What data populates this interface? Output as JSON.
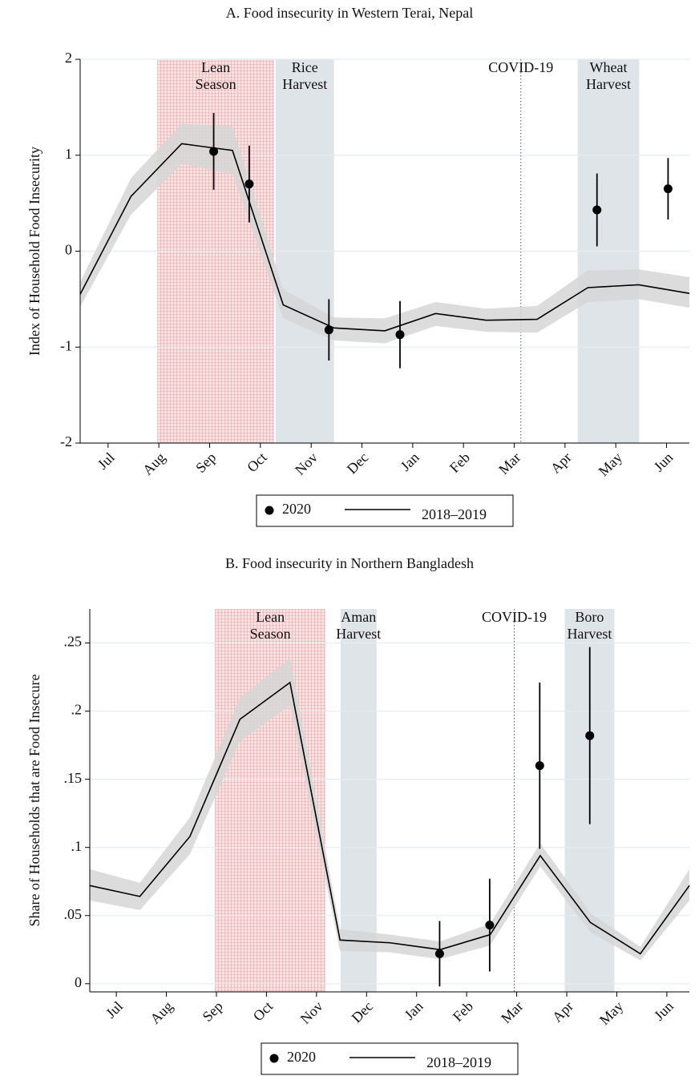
{
  "chart_data": [
    {
      "type": "line",
      "title": "A. Food insecurity in Western Terai, Nepal",
      "ylabel": "Index of Household Food Insecurity",
      "xlim": [
        -0.55,
        11.45
      ],
      "ylim": [
        -2,
        2
      ],
      "yticks": [
        -2,
        -1,
        0,
        1,
        2
      ],
      "grid": true,
      "legend": "bottom",
      "xticks": [
        {
          "value": 0,
          "label": "Jul"
        },
        {
          "value": 1,
          "label": "Aug"
        },
        {
          "value": 2,
          "label": "Sep"
        },
        {
          "value": 3,
          "label": "Oct"
        },
        {
          "value": 4,
          "label": "Nov"
        },
        {
          "value": 5,
          "label": "Dec"
        },
        {
          "value": 6,
          "label": "Jan"
        },
        {
          "value": 7,
          "label": "Feb"
        },
        {
          "value": 8,
          "label": "Mar"
        },
        {
          "value": 9,
          "label": "Apr"
        },
        {
          "value": 10,
          "label": "May"
        },
        {
          "value": 11,
          "label": "Jun"
        }
      ],
      "regions": [
        {
          "label": [
            "Lean",
            "Season"
          ],
          "x": [
            0.97,
            3.27
          ],
          "pattern": true,
          "color": "#f6e4e4"
        },
        {
          "label": [
            "Rice",
            "Harvest"
          ],
          "x": [
            3.3,
            4.45
          ],
          "color": "#dfe4e9"
        },
        {
          "label": [
            "Wheat",
            "Harvest"
          ],
          "x": [
            9.25,
            10.46
          ],
          "color": "#dfe4e9"
        }
      ],
      "vline": {
        "label": "COVID-19",
        "x": 8.13
      },
      "series": [
        {
          "name": "2020",
          "kind": "points",
          "color": "#000000",
          "x": [
            2.08,
            2.78,
            4.35,
            5.75,
            9.63,
            11.03
          ],
          "values": [
            1.04,
            0.7,
            -0.82,
            -0.87,
            0.43,
            0.65
          ],
          "errors": [
            0.4,
            0.4,
            0.32,
            0.35,
            0.38,
            0.32
          ]
        },
        {
          "name": "2018–2019",
          "kind": "line",
          "color": "#000000",
          "band_color": "#d6d6d6",
          "x": [
            -0.55,
            0.45,
            1.45,
            2.45,
            3.45,
            4.45,
            5.45,
            6.45,
            7.45,
            8.45,
            9.45,
            10.45,
            11.45
          ],
          "values": [
            -0.45,
            0.57,
            1.12,
            1.05,
            -0.56,
            -0.8,
            -0.83,
            -0.65,
            -0.72,
            -0.71,
            -0.38,
            -0.35,
            -0.44
          ],
          "upper": [
            -0.32,
            0.76,
            1.33,
            1.3,
            -0.4,
            -0.69,
            -0.7,
            -0.53,
            -0.6,
            -0.57,
            -0.2,
            -0.19,
            -0.27
          ],
          "lower": [
            -0.58,
            0.38,
            0.91,
            0.8,
            -0.7,
            -0.93,
            -0.96,
            -0.78,
            -0.84,
            -0.85,
            -0.53,
            -0.5,
            -0.59
          ]
        }
      ]
    },
    {
      "type": "line",
      "title": "B. Food insecurity in Northern Bangladesh",
      "ylabel": "Share of Households that are Food Insecure",
      "xlim": [
        -0.53,
        11.45
      ],
      "ylim": [
        -0.006,
        0.275
      ],
      "grid": true,
      "legend": "bottom",
      "yticks": [
        0,
        {
          "value": 0.05,
          "label": ".05"
        },
        {
          "value": 0.1,
          "label": ".1"
        },
        {
          "value": 0.15,
          "label": ".15"
        },
        {
          "value": 0.2,
          "label": ".2"
        },
        {
          "value": 0.25,
          "label": ".25"
        }
      ],
      "xticks": [
        {
          "value": 0,
          "label": "Jul"
        },
        {
          "value": 1,
          "label": "Aug"
        },
        {
          "value": 2,
          "label": "Sep"
        },
        {
          "value": 3,
          "label": "Oct"
        },
        {
          "value": 4,
          "label": "Nov"
        },
        {
          "value": 5,
          "label": "Dec"
        },
        {
          "value": 6,
          "label": "Jan"
        },
        {
          "value": 7,
          "label": "Feb"
        },
        {
          "value": 8,
          "label": "Mar"
        },
        {
          "value": 9,
          "label": "Apr"
        },
        {
          "value": 10,
          "label": "May"
        },
        {
          "value": 11,
          "label": "Jun"
        }
      ],
      "regions": [
        {
          "label": [
            "Lean",
            "Season"
          ],
          "x": [
            1.97,
            4.18
          ],
          "pattern": true,
          "color": "#f6e4e4"
        },
        {
          "label": [
            "Aman",
            "Harvest"
          ],
          "x": [
            4.48,
            5.2
          ],
          "color": "#dfe4e9"
        },
        {
          "label": [
            "Boro",
            "Harvest"
          ],
          "x": [
            8.96,
            9.95
          ],
          "color": "#dfe4e9"
        }
      ],
      "vline": {
        "label": "COVID-19",
        "x": 7.95
      },
      "series": [
        {
          "name": "2020",
          "kind": "points",
          "color": "#000000",
          "x": [
            6.46,
            7.46,
            8.46,
            9.46
          ],
          "values": [
            0.022,
            0.043,
            0.16,
            0.182
          ],
          "errors": [
            0.024,
            0.034,
            0.061,
            0.065
          ]
        },
        {
          "name": "2018–2019",
          "kind": "line",
          "color": "#000000",
          "band_color": "#d6d6d6",
          "x": [
            -0.53,
            0.47,
            1.47,
            2.47,
            3.47,
            4.47,
            5.47,
            6.47,
            7.47,
            8.47,
            9.47,
            10.47,
            11.45
          ],
          "values": [
            0.072,
            0.064,
            0.108,
            0.194,
            0.221,
            0.032,
            0.03,
            0.025,
            0.036,
            0.094,
            0.045,
            0.022,
            0.072
          ],
          "upper": [
            0.084,
            0.074,
            0.122,
            0.21,
            0.239,
            0.04,
            0.036,
            0.031,
            0.044,
            0.103,
            0.052,
            0.027,
            0.084
          ],
          "lower": [
            0.061,
            0.054,
            0.095,
            0.178,
            0.204,
            0.024,
            0.023,
            0.018,
            0.028,
            0.086,
            0.038,
            0.017,
            0.061
          ]
        }
      ]
    }
  ]
}
